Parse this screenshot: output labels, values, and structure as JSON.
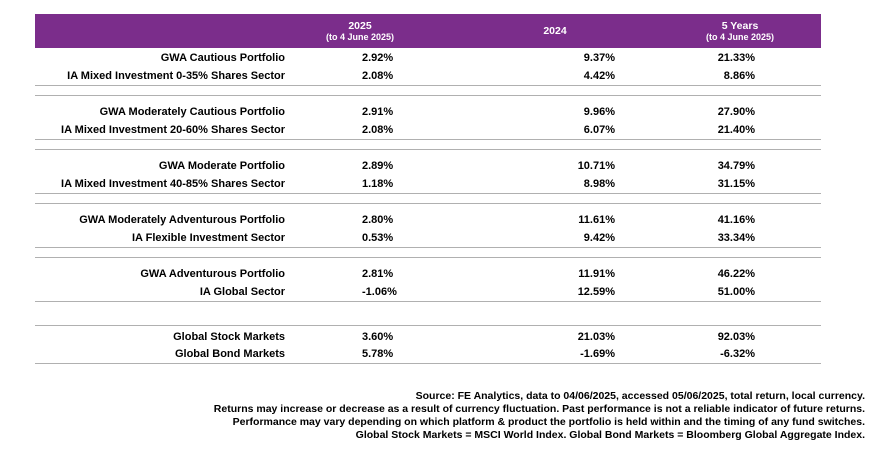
{
  "header": {
    "col_2025": "2025",
    "col_2025_sub": "(to 4 June 2025)",
    "col_2024": "2024",
    "col_5y": "5 Years",
    "col_5y_sub": "(to 4 June 2025)"
  },
  "groups": [
    {
      "rows": [
        {
          "name": "GWA Cautious Portfolio",
          "y2025": "2.92%",
          "y2024": "9.37%",
          "y5": "21.33%"
        },
        {
          "name": "IA Mixed Investment 0-35% Shares Sector",
          "y2025": "2.08%",
          "y2024": "4.42%",
          "y5": "8.86%"
        }
      ]
    },
    {
      "rows": [
        {
          "name": "GWA Moderately Cautious Portfolio",
          "y2025": "2.91%",
          "y2024": "9.96%",
          "y5": "27.90%"
        },
        {
          "name": "IA Mixed Investment 20-60% Shares Sector",
          "y2025": "2.08%",
          "y2024": "6.07%",
          "y5": "21.40%"
        }
      ]
    },
    {
      "rows": [
        {
          "name": "GWA Moderate Portfolio",
          "y2025": "2.89%",
          "y2024": "10.71%",
          "y5": "34.79%"
        },
        {
          "name": "IA Mixed Investment 40-85% Shares Sector",
          "y2025": "1.18%",
          "y2024": "8.98%",
          "y5": "31.15%"
        }
      ]
    },
    {
      "rows": [
        {
          "name": "GWA Moderately Adventurous Portfolio",
          "y2025": "2.80%",
          "y2024": "11.61%",
          "y5": "41.16%"
        },
        {
          "name": "IA Flexible Investment Sector",
          "y2025": "0.53%",
          "y2024": "9.42%",
          "y5": "33.34%"
        }
      ]
    },
    {
      "rows": [
        {
          "name": "GWA Adventurous Portfolio",
          "y2025": "2.81%",
          "y2024": "11.91%",
          "y5": "46.22%"
        },
        {
          "name": "IA Global Sector",
          "y2025": "-1.06%",
          "y2024": "12.59%",
          "y5": "51.00%"
        }
      ]
    },
    {
      "rows": [
        {
          "name": "Global Stock Markets",
          "y2025": "3.60%",
          "y2024": "21.03%",
          "y5": "92.03%"
        },
        {
          "name": "Global Bond Markets",
          "y2025": "5.78%",
          "y2024": "-1.69%",
          "y5": "-6.32%"
        }
      ]
    }
  ],
  "notes": {
    "line1": "Source: FE Analytics, data to 04/06/2025, accessed 05/06/2025, total return, local currency.",
    "line2": "Returns may increase or decrease as a result of currency fluctuation. Past performance is not a reliable indicator of future returns.",
    "line3": "Performance may vary depending on which platform & product the portfolio is held within and the timing of any fund switches.",
    "line4": "Global Stock Markets = MSCI World Index.  Global Bond Markets = Bloomberg Global Aggregate Index."
  }
}
